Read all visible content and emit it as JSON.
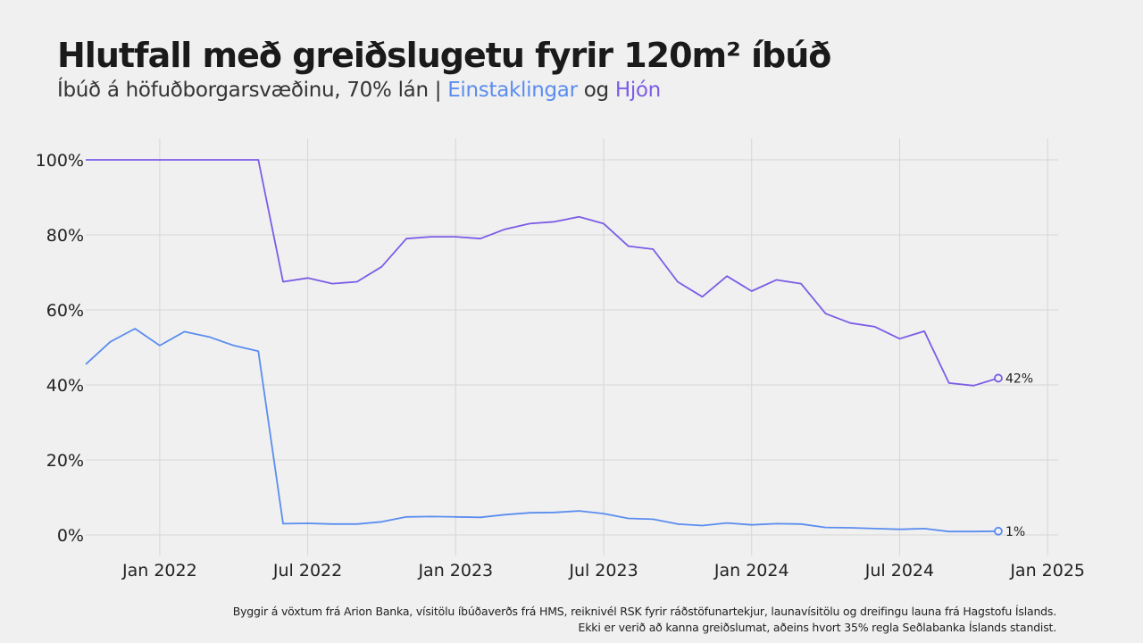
{
  "title": "Hlutfall með greiðslugetu fyrir 120m² íbúð",
  "subtitle": {
    "prefix": "Íbúð á höfuðborgarsvæðinu, 70% lán | ",
    "series1": "Einstaklingar",
    "joiner": " og ",
    "series2": "Hjón"
  },
  "footer": {
    "line1": "Byggir á vöxtum frá Arion Banka, vísitölu íbúðaverðs frá HMS, reiknivél RSK fyrir ráðstöfunartekjur, launavísitölu og dreifingu launa frá Hagstofu Íslands.",
    "line2": "Ekki er verið að kanna greiðslumat, aðeins hvort 35% regla Seðlabanka Íslands standist."
  },
  "chart_data": {
    "type": "line",
    "x_start": "2021-10",
    "y_tick_labels": [
      "0%",
      "20%",
      "40%",
      "60%",
      "80%",
      "100%"
    ],
    "y_ticks": [
      0,
      20,
      40,
      60,
      80,
      100
    ],
    "ylim": [
      -5,
      105
    ],
    "x_tick_labels": [
      "Jan 2022",
      "Jul 2022",
      "Jan 2023",
      "Jul 2023",
      "Jan 2024",
      "Jul 2024",
      "Jan 2025"
    ],
    "grid": true,
    "series": [
      {
        "name": "Hjón",
        "color": "#7b5ce6",
        "values": [
          100,
          100,
          100,
          100,
          100,
          100,
          100,
          100,
          67.5,
          68.5,
          67,
          67.5,
          71.5,
          79,
          79.5,
          79.5,
          79,
          81.5,
          83,
          83.5,
          84.8,
          83,
          77,
          76.2,
          67.5,
          63.5,
          69,
          65,
          68,
          67,
          59,
          56.5,
          55.5,
          52.3,
          54.3,
          40.5,
          39.8,
          41.8
        ],
        "end_label": "42%"
      },
      {
        "name": "Einstaklingar",
        "color": "#5b8def",
        "values": [
          45.5,
          51.5,
          55,
          50.5,
          54.2,
          52.8,
          50.5,
          49,
          3,
          3.1,
          2.9,
          2.9,
          3.5,
          4.8,
          4.9,
          4.8,
          4.7,
          5.4,
          5.9,
          6,
          6.4,
          5.7,
          4.4,
          4.2,
          2.9,
          2.5,
          3.2,
          2.7,
          3,
          2.9,
          2,
          1.9,
          1.7,
          1.5,
          1.7,
          0.9,
          0.9,
          1
        ],
        "end_label": "1%"
      }
    ]
  }
}
